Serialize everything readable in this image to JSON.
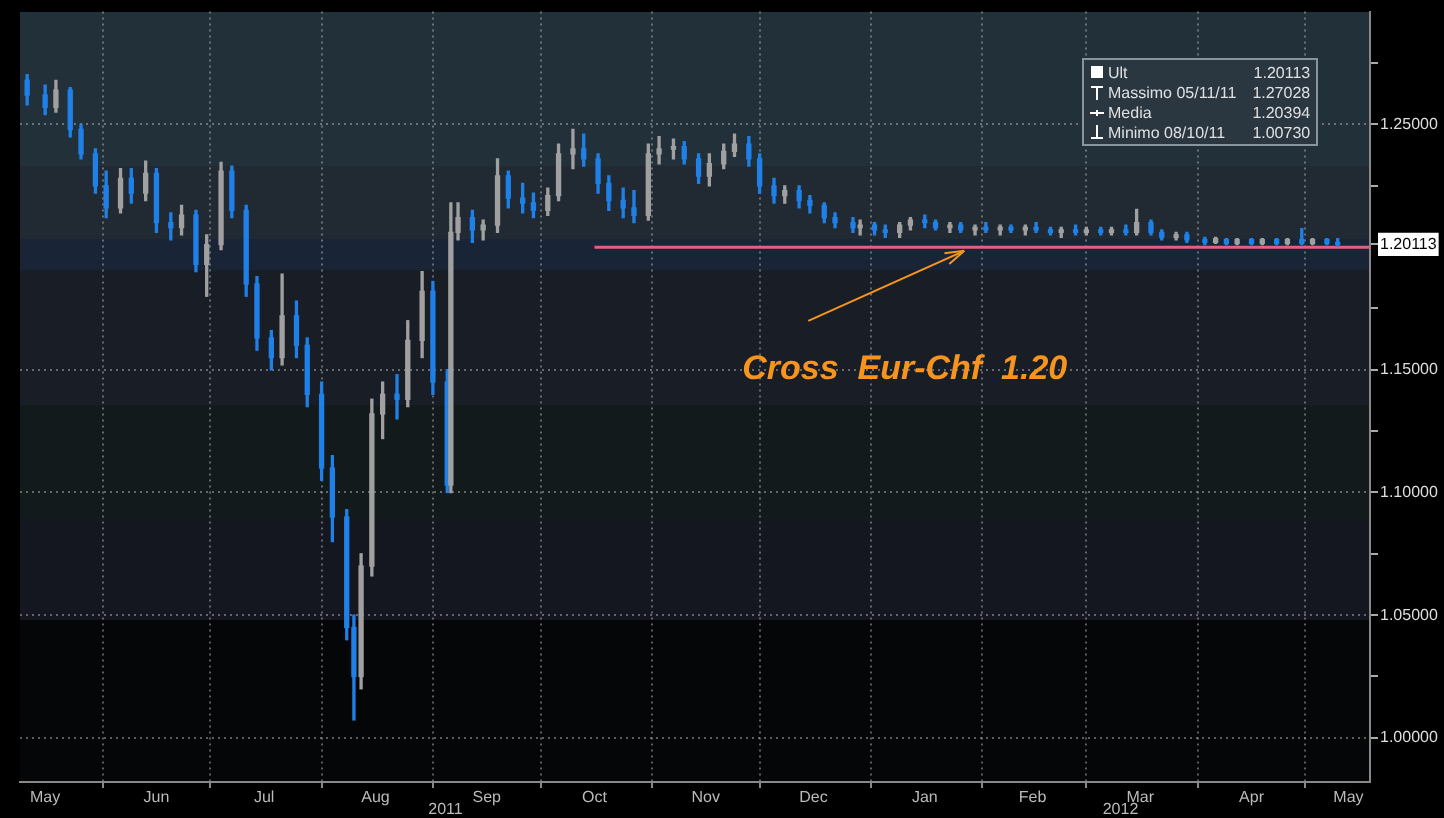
{
  "chart_data": {
    "type": "candlestick",
    "xlim": [
      "2011-05-09",
      "2012-05-19"
    ],
    "ylim": [
      0.982,
      1.296
    ],
    "xticks": [
      {
        "value": "2011-05-16",
        "label": "May"
      },
      {
        "value": "2011-06-01",
        "label": null
      },
      {
        "value": "2011-06-16",
        "label": "Jun"
      },
      {
        "value": "2011-07-01",
        "label": null
      },
      {
        "value": "2011-07-16",
        "label": "Jul"
      },
      {
        "value": "2011-08-01",
        "label": null
      },
      {
        "value": "2011-08-16",
        "label": "Aug"
      },
      {
        "value": "2011-09-01",
        "label": null
      },
      {
        "value": "2011-09-16",
        "label": "Sep"
      },
      {
        "value": "2011-10-01",
        "label": null
      },
      {
        "value": "2011-10-16",
        "label": "Oct"
      },
      {
        "value": "2011-11-01",
        "label": null
      },
      {
        "value": "2011-11-16",
        "label": "Nov"
      },
      {
        "value": "2011-12-01",
        "label": null
      },
      {
        "value": "2011-12-16",
        "label": "Dec"
      },
      {
        "value": "2012-01-01",
        "label": null
      },
      {
        "value": "2012-01-16",
        "label": "Jan"
      },
      {
        "value": "2012-02-01",
        "label": null
      },
      {
        "value": "2012-02-15",
        "label": "Feb"
      },
      {
        "value": "2012-03-01",
        "label": null
      },
      {
        "value": "2012-03-16",
        "label": "Mar"
      },
      {
        "value": "2012-04-01",
        "label": null
      },
      {
        "value": "2012-04-16",
        "label": "Apr"
      },
      {
        "value": "2012-05-01",
        "label": null
      },
      {
        "value": "2012-05-13",
        "label": "May"
      }
    ],
    "yticks": [
      {
        "value": 1.0,
        "label": "1.00000"
      },
      {
        "value": 1.025,
        "label": null
      },
      {
        "value": 1.05,
        "label": "1.05000"
      },
      {
        "value": 1.075,
        "label": null
      },
      {
        "value": 1.1,
        "label": "1.10000"
      },
      {
        "value": 1.125,
        "label": null
      },
      {
        "value": 1.15,
        "label": "1.15000"
      },
      {
        "value": 1.175,
        "label": null
      },
      {
        "value": 1.20113,
        "label": "1.20113"
      },
      {
        "value": 1.225,
        "label": null
      },
      {
        "value": 1.25,
        "label": "1.25000"
      },
      {
        "value": 1.275,
        "label": null
      }
    ],
    "grid": true,
    "series": [
      {
        "type": "line",
        "x": [
          "2011-10-16",
          "2012-05-19"
        ],
        "values": [
          1.2,
          1.2
        ],
        "color": "#e0607e"
      },
      {
        "x": [
          "2011-05-11",
          "2011-05-16",
          "2011-05-19",
          "2011-05-23",
          "2011-05-26",
          "2011-05-30",
          "2011-06-02",
          "2011-06-06",
          "2011-06-09",
          "2011-06-13",
          "2011-06-16",
          "2011-06-20",
          "2011-06-23",
          "2011-06-27",
          "2011-06-30",
          "2011-07-04",
          "2011-07-07",
          "2011-07-11",
          "2011-07-14",
          "2011-07-18",
          "2011-07-21",
          "2011-07-25",
          "2011-07-28",
          "2011-08-01",
          "2011-08-04",
          "2011-08-08",
          "2011-08-10",
          "2011-08-12",
          "2011-08-15",
          "2011-08-18",
          "2011-08-22",
          "2011-08-25",
          "2011-08-29",
          "2011-09-01",
          "2011-09-05",
          "2011-09-06",
          "2011-09-08",
          "2011-09-12",
          "2011-09-15",
          "2011-09-19",
          "2011-09-22",
          "2011-09-26",
          "2011-09-29",
          "2011-10-03",
          "2011-10-06",
          "2011-10-10",
          "2011-10-13",
          "2011-10-17",
          "2011-10-20",
          "2011-10-24",
          "2011-10-27",
          "2011-10-31",
          "2011-11-03",
          "2011-11-07",
          "2011-11-10",
          "2011-11-14",
          "2011-11-17",
          "2011-11-21",
          "2011-11-24",
          "2011-11-28",
          "2011-12-01",
          "2011-12-05",
          "2011-12-08",
          "2011-12-12",
          "2011-12-15",
          "2011-12-19",
          "2011-12-22",
          "2011-12-27",
          "2011-12-29",
          "2012-01-02",
          "2012-01-05",
          "2012-01-09",
          "2012-01-12",
          "2012-01-16",
          "2012-01-19",
          "2012-01-23",
          "2012-01-26",
          "2012-01-30",
          "2012-02-02",
          "2012-02-06",
          "2012-02-09",
          "2012-02-13",
          "2012-02-16",
          "2012-02-20",
          "2012-02-23",
          "2012-02-27",
          "2012-03-01",
          "2012-03-05",
          "2012-03-08",
          "2012-03-12",
          "2012-03-15",
          "2012-03-19",
          "2012-03-22",
          "2012-03-26",
          "2012-03-29",
          "2012-04-03",
          "2012-04-06",
          "2012-04-09",
          "2012-04-12",
          "2012-04-16",
          "2012-04-19",
          "2012-04-23",
          "2012-04-26",
          "2012-04-30",
          "2012-05-03",
          "2012-05-07",
          "2012-05-10"
        ],
        "ohlc": [
          [
            1.268,
            1.27028,
            1.258,
            1.262
          ],
          [
            1.262,
            1.266,
            1.254,
            1.257
          ],
          [
            1.257,
            1.268,
            1.255,
            1.264
          ],
          [
            1.264,
            1.265,
            1.245,
            1.248
          ],
          [
            1.248,
            1.25,
            1.236,
            1.238
          ],
          [
            1.238,
            1.24,
            1.222,
            1.225
          ],
          [
            1.225,
            1.231,
            1.212,
            1.216
          ],
          [
            1.216,
            1.232,
            1.214,
            1.228
          ],
          [
            1.228,
            1.232,
            1.218,
            1.222
          ],
          [
            1.222,
            1.235,
            1.219,
            1.23
          ],
          [
            1.23,
            1.232,
            1.206,
            1.21
          ],
          [
            1.21,
            1.214,
            1.203,
            1.208
          ],
          [
            1.208,
            1.217,
            1.205,
            1.213
          ],
          [
            1.213,
            1.215,
            1.19,
            1.193
          ],
          [
            1.193,
            1.205,
            1.18,
            1.201
          ],
          [
            1.201,
            1.2345,
            1.199,
            1.231
          ],
          [
            1.231,
            1.233,
            1.212,
            1.215
          ],
          [
            1.215,
            1.217,
            1.18,
            1.185
          ],
          [
            1.185,
            1.188,
            1.158,
            1.163
          ],
          [
            1.163,
            1.166,
            1.15,
            1.155
          ],
          [
            1.155,
            1.189,
            1.152,
            1.172
          ],
          [
            1.172,
            1.178,
            1.155,
            1.16
          ],
          [
            1.16,
            1.163,
            1.135,
            1.14
          ],
          [
            1.14,
            1.145,
            1.105,
            1.11
          ],
          [
            1.11,
            1.115,
            1.08,
            1.09
          ],
          [
            1.09,
            1.093,
            1.04,
            1.045
          ],
          [
            1.045,
            1.05,
            1.0073,
            1.025
          ],
          [
            1.025,
            1.075,
            1.02,
            1.07
          ],
          [
            1.07,
            1.138,
            1.066,
            1.132
          ],
          [
            1.132,
            1.145,
            1.122,
            1.14
          ],
          [
            1.14,
            1.148,
            1.13,
            1.138
          ],
          [
            1.138,
            1.17,
            1.135,
            1.162
          ],
          [
            1.162,
            1.19,
            1.155,
            1.182
          ],
          [
            1.182,
            1.186,
            1.14,
            1.145
          ],
          [
            1.145,
            1.15,
            1.1,
            1.103
          ],
          [
            1.103,
            1.218,
            1.1,
            1.206
          ],
          [
            1.206,
            1.218,
            1.203,
            1.212
          ],
          [
            1.212,
            1.215,
            1.202,
            1.207
          ],
          [
            1.207,
            1.211,
            1.203,
            1.209
          ],
          [
            1.209,
            1.236,
            1.206,
            1.229
          ],
          [
            1.229,
            1.231,
            1.216,
            1.22
          ],
          [
            1.22,
            1.226,
            1.214,
            1.218
          ],
          [
            1.218,
            1.222,
            1.212,
            1.215
          ],
          [
            1.215,
            1.224,
            1.213,
            1.221
          ],
          [
            1.221,
            1.242,
            1.219,
            1.238
          ],
          [
            1.238,
            1.248,
            1.232,
            1.24
          ],
          [
            1.24,
            1.246,
            1.233,
            1.236
          ],
          [
            1.236,
            1.238,
            1.222,
            1.226
          ],
          [
            1.226,
            1.229,
            1.215,
            1.219
          ],
          [
            1.219,
            1.224,
            1.212,
            1.216
          ],
          [
            1.216,
            1.223,
            1.21,
            1.213
          ],
          [
            1.213,
            1.242,
            1.211,
            1.238
          ],
          [
            1.238,
            1.245,
            1.234,
            1.24
          ],
          [
            1.24,
            1.244,
            1.236,
            1.241
          ],
          [
            1.241,
            1.243,
            1.234,
            1.236
          ],
          [
            1.236,
            1.238,
            1.226,
            1.229
          ],
          [
            1.229,
            1.238,
            1.225,
            1.234
          ],
          [
            1.234,
            1.242,
            1.232,
            1.239
          ],
          [
            1.239,
            1.246,
            1.237,
            1.242
          ],
          [
            1.242,
            1.245,
            1.233,
            1.236
          ],
          [
            1.236,
            1.238,
            1.222,
            1.225
          ],
          [
            1.225,
            1.228,
            1.218,
            1.221
          ],
          [
            1.221,
            1.225,
            1.218,
            1.223
          ],
          [
            1.223,
            1.225,
            1.216,
            1.219
          ],
          [
            1.219,
            1.221,
            1.214,
            1.217
          ],
          [
            1.217,
            1.218,
            1.21,
            1.212
          ],
          [
            1.212,
            1.214,
            1.208,
            1.21
          ],
          [
            1.21,
            1.212,
            1.206,
            1.208
          ],
          [
            1.208,
            1.211,
            1.205,
            1.209
          ],
          [
            1.209,
            1.21,
            1.205,
            1.207
          ],
          [
            1.207,
            1.209,
            1.204,
            1.206
          ],
          [
            1.206,
            1.21,
            1.204,
            1.209
          ],
          [
            1.209,
            1.212,
            1.207,
            1.211
          ],
          [
            1.211,
            1.213,
            1.208,
            1.21
          ],
          [
            1.21,
            1.211,
            1.207,
            1.208
          ],
          [
            1.208,
            1.21,
            1.206,
            1.209
          ],
          [
            1.209,
            1.21,
            1.206,
            1.207
          ],
          [
            1.207,
            1.209,
            1.205,
            1.208
          ],
          [
            1.208,
            1.21,
            1.206,
            1.207
          ],
          [
            1.207,
            1.209,
            1.205,
            1.208
          ],
          [
            1.208,
            1.209,
            1.206,
            1.207
          ],
          [
            1.207,
            1.209,
            1.205,
            1.208
          ],
          [
            1.208,
            1.21,
            1.206,
            1.207
          ],
          [
            1.207,
            1.208,
            1.205,
            1.206
          ],
          [
            1.206,
            1.208,
            1.204,
            1.207
          ],
          [
            1.207,
            1.209,
            1.205,
            1.206
          ],
          [
            1.206,
            1.208,
            1.205,
            1.207
          ],
          [
            1.207,
            1.208,
            1.205,
            1.206
          ],
          [
            1.206,
            1.208,
            1.205,
            1.207
          ],
          [
            1.207,
            1.209,
            1.205,
            1.206
          ],
          [
            1.206,
            1.2154,
            1.205,
            1.21
          ],
          [
            1.21,
            1.211,
            1.205,
            1.206
          ],
          [
            1.206,
            1.207,
            1.203,
            1.204
          ],
          [
            1.204,
            1.206,
            1.203,
            1.205
          ],
          [
            1.205,
            1.206,
            1.202,
            1.203
          ],
          [
            1.203,
            1.204,
            1.201,
            1.202
          ],
          [
            1.202,
            1.204,
            1.2015,
            1.2035
          ],
          [
            1.203,
            1.2035,
            1.201,
            1.2015
          ],
          [
            1.2015,
            1.2035,
            1.201,
            1.203
          ],
          [
            1.203,
            1.2035,
            1.201,
            1.2015
          ],
          [
            1.2015,
            1.2035,
            1.201,
            1.203
          ],
          [
            1.203,
            1.2035,
            1.201,
            1.2015
          ],
          [
            1.2015,
            1.2035,
            1.201,
            1.203
          ],
          [
            1.203,
            1.2075,
            1.201,
            1.2015
          ],
          [
            1.2015,
            1.2035,
            1.201,
            1.203
          ],
          [
            1.203,
            1.2035,
            1.201,
            1.2015
          ],
          [
            1.2015,
            1.2035,
            1.2005,
            1.20113
          ]
        ],
        "colors": [
          "#1f80e8",
          "#1f80e8",
          "#a0a0a0",
          "#1f80e8",
          "#1f80e8",
          "#1f80e8",
          "#1f80e8",
          "#a0a0a0",
          "#1f80e8",
          "#a0a0a0",
          "#1f80e8",
          "#1f80e8",
          "#a0a0a0",
          "#1f80e8",
          "#a0a0a0",
          "#a0a0a0",
          "#1f80e8",
          "#1f80e8",
          "#1f80e8",
          "#1f80e8",
          "#a0a0a0",
          "#1f80e8",
          "#1f80e8",
          "#1f80e8",
          "#1f80e8",
          "#1f80e8",
          "#1f80e8",
          "#a0a0a0",
          "#a0a0a0",
          "#a0a0a0",
          "#1f80e8",
          "#a0a0a0",
          "#a0a0a0",
          "#1f80e8",
          "#1f80e8",
          "#a0a0a0",
          "#a0a0a0",
          "#1f80e8",
          "#a0a0a0",
          "#a0a0a0",
          "#1f80e8",
          "#1f80e8",
          "#1f80e8",
          "#a0a0a0",
          "#a0a0a0",
          "#a0a0a0",
          "#1f80e8",
          "#1f80e8",
          "#1f80e8",
          "#1f80e8",
          "#1f80e8",
          "#a0a0a0",
          "#a0a0a0",
          "#a0a0a0",
          "#1f80e8",
          "#1f80e8",
          "#a0a0a0",
          "#a0a0a0",
          "#a0a0a0",
          "#1f80e8",
          "#1f80e8",
          "#1f80e8",
          "#a0a0a0",
          "#1f80e8",
          "#1f80e8",
          "#1f80e8",
          "#1f80e8",
          "#1f80e8",
          "#a0a0a0",
          "#1f80e8",
          "#1f80e8",
          "#a0a0a0",
          "#a0a0a0",
          "#1f80e8",
          "#1f80e8",
          "#a0a0a0",
          "#1f80e8",
          "#a0a0a0",
          "#1f80e8",
          "#a0a0a0",
          "#1f80e8",
          "#a0a0a0",
          "#1f80e8",
          "#1f80e8",
          "#a0a0a0",
          "#1f80e8",
          "#a0a0a0",
          "#1f80e8",
          "#a0a0a0",
          "#1f80e8",
          "#a0a0a0",
          "#1f80e8",
          "#1f80e8",
          "#a0a0a0",
          "#1f80e8",
          "#1f80e8",
          "#a0a0a0",
          "#1f80e8",
          "#a0a0a0",
          "#1f80e8",
          "#a0a0a0",
          "#1f80e8",
          "#a0a0a0",
          "#1f80e8",
          "#a0a0a0",
          "#1f80e8",
          "#1f80e8"
        ]
      }
    ],
    "annotations": [
      {
        "text": "Cross  Eur-Chf  1.20",
        "x": "2012-01-27",
        "y": 1.1985
      },
      "Ult",
      "1.20113",
      "Massimo 05/11/11",
      "1.27028",
      "Media",
      "1.20394",
      "Minimo 08/10/11",
      "1.00730",
      "2011",
      "2012"
    ]
  }
}
